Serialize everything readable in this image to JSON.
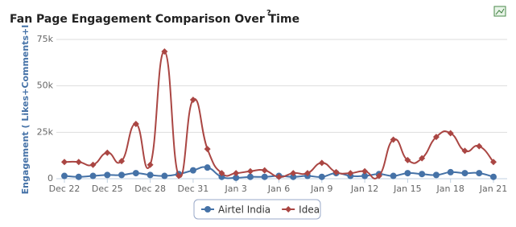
{
  "chart_data": {
    "type": "line",
    "title": "Fan Page Engagement Comparison Over Time",
    "title_help": "?",
    "y_label": "Engagement ( Likes+Comments+I",
    "categories": [
      "Dec 22",
      null,
      null,
      "Dec 25",
      null,
      null,
      "Dec 28",
      null,
      null,
      "Dec 31",
      null,
      null,
      "Jan 3",
      null,
      null,
      "Jan 6",
      null,
      null,
      "Jan 9",
      null,
      null,
      "Jan 12",
      null,
      null,
      "Jan 15",
      null,
      null,
      "Jan 18",
      null,
      null,
      "Jan 21"
    ],
    "ylim": [
      0,
      75000
    ],
    "yticks": [
      0,
      {
        "value": 25000,
        "label": "25k"
      },
      {
        "value": 50000,
        "label": "50k"
      },
      {
        "value": 75000,
        "label": "75k"
      }
    ],
    "grid": true,
    "legend": "bottom",
    "series": [
      {
        "name": "Airtel India",
        "color": "#4572a7",
        "marker": "circle",
        "values": [
          1500,
          1000,
          1500,
          2000,
          2000,
          3000,
          2000,
          1500,
          2500,
          4500,
          6000,
          1000,
          500,
          1000,
          1000,
          1500,
          1000,
          1500,
          1000,
          3000,
          1500,
          1500,
          2500,
          1500,
          3000,
          2500,
          2000,
          3500,
          3000,
          3000,
          1000
        ]
      },
      {
        "name": "Idea",
        "color": "#aa4643",
        "marker": "diamond",
        "values": [
          9000,
          9000,
          7500,
          14000,
          9500,
          29500,
          7500,
          68500,
          1500,
          42500,
          16000,
          3000,
          3000,
          4000,
          4500,
          1000,
          3000,
          3000,
          8500,
          3500,
          3000,
          4000,
          1500,
          21000,
          10000,
          11000,
          22500,
          24500,
          15000,
          17500,
          9000
        ]
      }
    ]
  }
}
